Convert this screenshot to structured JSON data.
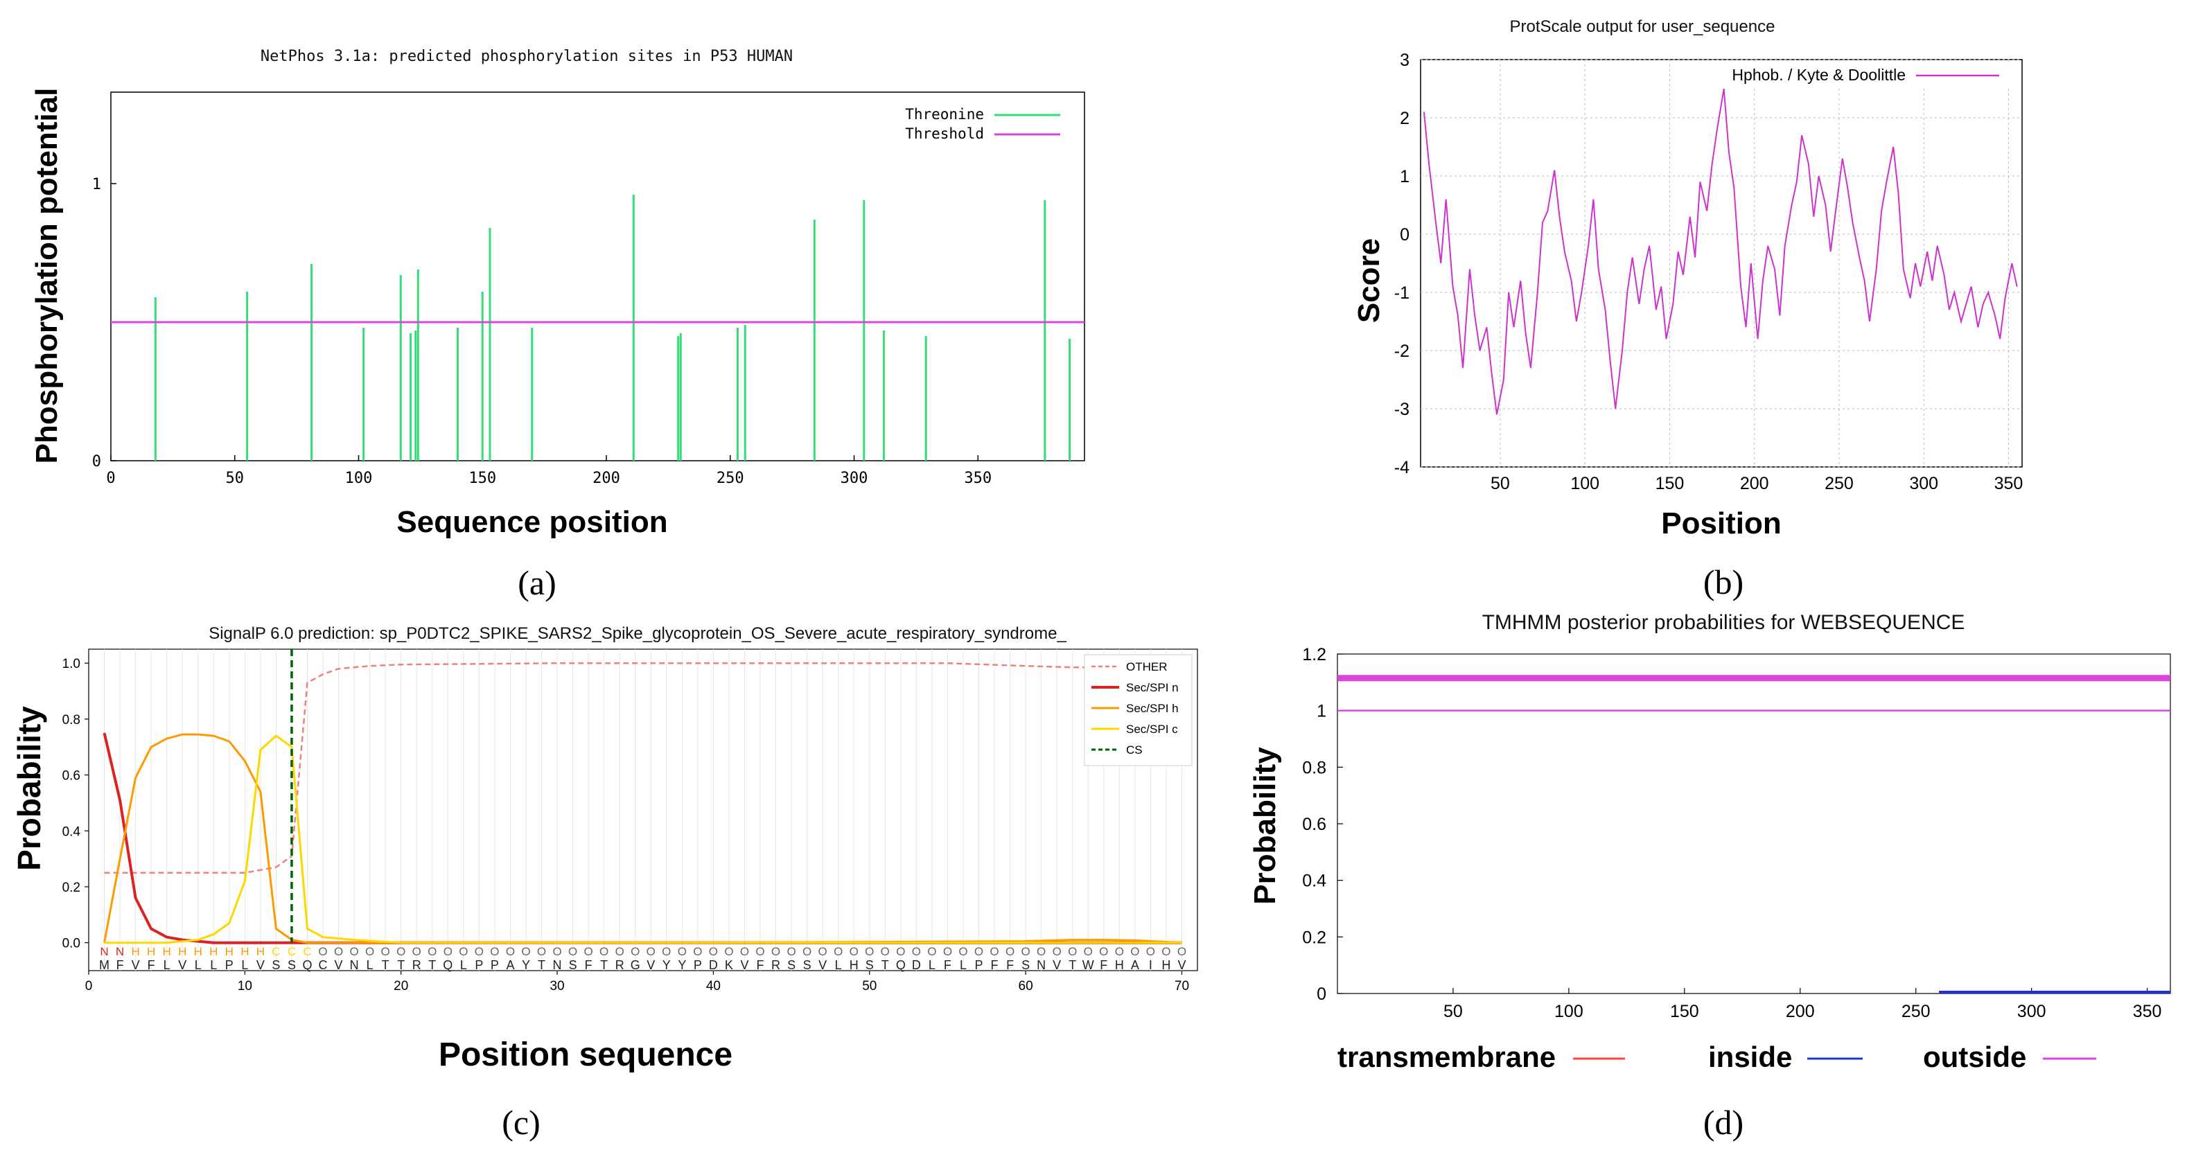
{
  "panels": {
    "a": {
      "label": "(a)"
    },
    "b": {
      "label": "(b)"
    },
    "c": {
      "label": "(c)"
    },
    "d": {
      "label": "(d)"
    }
  },
  "colors": {
    "green": "#33dd77",
    "magenta": "#dd44dd",
    "red": "#dd2222",
    "orange": "#ff9900",
    "yellow": "#ffd700",
    "salmon": "#f08080",
    "cs": "#006400",
    "blue": "#2233cc"
  },
  "chart_data": [
    {
      "id": "a",
      "type": "bar",
      "title": "NetPhos 3.1a: predicted phosphorylation sites in P53 HUMAN",
      "xlabel": "Sequence position",
      "ylabel": "Phosphorylation potential",
      "xlim": [
        0,
        393
      ],
      "ylim": [
        0,
        1.33
      ],
      "xticks": [
        0,
        50,
        100,
        150,
        200,
        250,
        300,
        350
      ],
      "yticks": [
        0,
        1
      ],
      "threshold": 0.5,
      "legend": [
        "Threonine",
        "Threshold"
      ],
      "x": [
        18,
        55,
        81,
        102,
        117,
        121,
        123,
        124,
        140,
        150,
        153,
        170,
        211,
        229,
        230,
        253,
        256,
        284,
        304,
        312,
        329,
        377,
        387
      ],
      "values": [
        0.59,
        0.61,
        0.71,
        0.48,
        0.67,
        0.46,
        0.47,
        0.69,
        0.48,
        0.61,
        0.84,
        0.48,
        0.96,
        0.45,
        0.46,
        0.48,
        0.49,
        0.87,
        0.94,
        0.47,
        0.45,
        0.94,
        0.44
      ]
    },
    {
      "id": "b",
      "type": "line",
      "title": "ProtScale output for user_sequence",
      "xlabel": "Position",
      "ylabel": "Score",
      "xlim": [
        3,
        358
      ],
      "ylim": [
        -4,
        3
      ],
      "xticks": [
        50,
        100,
        150,
        200,
        250,
        300,
        350
      ],
      "yticks": [
        -4,
        -3,
        -2,
        -1,
        0,
        1,
        2,
        3
      ],
      "legend": [
        "Hphob. / Kyte & Doolittle"
      ],
      "x": [
        5,
        8,
        12,
        15,
        18,
        22,
        25,
        28,
        32,
        35,
        38,
        42,
        45,
        48,
        52,
        55,
        58,
        62,
        65,
        68,
        72,
        75,
        78,
        82,
        85,
        88,
        92,
        95,
        98,
        102,
        105,
        108,
        112,
        115,
        118,
        122,
        125,
        128,
        132,
        135,
        138,
        142,
        145,
        148,
        152,
        155,
        158,
        162,
        165,
        168,
        172,
        175,
        178,
        182,
        185,
        188,
        192,
        195,
        198,
        202,
        205,
        208,
        212,
        215,
        218,
        222,
        225,
        228,
        232,
        235,
        238,
        242,
        245,
        248,
        252,
        255,
        258,
        262,
        265,
        268,
        272,
        275,
        278,
        282,
        285,
        288,
        292,
        295,
        298,
        302,
        305,
        308,
        312,
        315,
        318,
        322,
        325,
        328,
        332,
        335,
        338,
        342,
        345,
        348,
        352,
        355
      ],
      "values": [
        2.1,
        1.2,
        0.2,
        -0.5,
        0.6,
        -0.9,
        -1.4,
        -2.3,
        -0.6,
        -1.4,
        -2.0,
        -1.6,
        -2.4,
        -3.1,
        -2.5,
        -1.0,
        -1.6,
        -0.8,
        -1.7,
        -2.3,
        -1.0,
        0.2,
        0.4,
        1.1,
        0.3,
        -0.3,
        -0.8,
        -1.5,
        -1.0,
        -0.2,
        0.6,
        -0.6,
        -1.3,
        -2.2,
        -3.0,
        -2.0,
        -1.0,
        -0.4,
        -1.2,
        -0.6,
        -0.2,
        -1.3,
        -0.9,
        -1.8,
        -1.2,
        -0.3,
        -0.7,
        0.3,
        -0.4,
        0.9,
        0.4,
        1.2,
        1.8,
        2.5,
        1.4,
        0.8,
        -0.9,
        -1.6,
        -0.5,
        -1.8,
        -0.8,
        -0.2,
        -0.6,
        -1.4,
        -0.2,
        0.5,
        0.9,
        1.7,
        1.2,
        0.3,
        1.0,
        0.5,
        -0.3,
        0.4,
        1.3,
        0.8,
        0.2,
        -0.4,
        -0.8,
        -1.5,
        -0.6,
        0.4,
        0.9,
        1.5,
        0.7,
        -0.6,
        -1.1,
        -0.5,
        -0.9,
        -0.3,
        -0.8,
        -0.2,
        -0.7,
        -1.3,
        -1.0,
        -1.5,
        -1.2,
        -0.9,
        -1.6,
        -1.2,
        -1.0,
        -1.4,
        -1.8,
        -1.1,
        -0.5,
        -0.9
      ]
    },
    {
      "id": "c",
      "type": "line",
      "title": "SignalP 6.0 prediction: sp_P0DTC2_SPIKE_SARS2_Spike_glycoprotein_OS_Severe_acute_respiratory_syndrome_",
      "xlabel": "Position sequence",
      "ylabel": "Probability",
      "xlim": [
        0,
        71
      ],
      "ylim": [
        -0.1,
        1.05
      ],
      "xticks": [
        0,
        10,
        20,
        30,
        40,
        50,
        60,
        70
      ],
      "yticks": [
        0.0,
        0.2,
        0.4,
        0.6,
        0.8,
        1.0
      ],
      "ytick_labels": [
        "0.0",
        "0.2",
        "0.4",
        "0.6",
        "0.8",
        "1.0"
      ],
      "cs": 13,
      "region_labels": "NNHHHHHHHHHCCCOOOOOOOOOOOOOOOOOOOOOOOOOOOOOOOOOOOOOOOOOOOOOOOOOOOOOOOOOOO",
      "sequence": "MFVFLVLLPLVSSQCVNLTTRTQLPPAYTNSFTRGVYYPDKVFRSSVLHSTQDLFLPFFSNVTWFHAIHV",
      "series": [
        {
          "name": "OTHER",
          "dashed": true,
          "x": [
            1,
            5,
            10,
            12,
            13,
            14,
            15,
            16,
            18,
            20,
            30,
            40,
            50,
            55,
            60,
            63,
            65,
            67,
            70
          ],
          "values": [
            0.25,
            0.25,
            0.25,
            0.27,
            0.31,
            0.93,
            0.96,
            0.98,
            0.99,
            0.995,
            1.0,
            1.0,
            1.0,
            1.0,
            0.99,
            0.985,
            0.985,
            0.99,
            0.995
          ]
        },
        {
          "name": "Sec/SPI n",
          "x": [
            1,
            2,
            3,
            4,
            5,
            6,
            7,
            8,
            9,
            10,
            20,
            40,
            70
          ],
          "values": [
            0.75,
            0.51,
            0.16,
            0.05,
            0.02,
            0.01,
            0.005,
            0.0,
            0.0,
            0.0,
            0.0,
            0.0,
            0.0
          ]
        },
        {
          "name": "Sec/SPI h",
          "x": [
            1,
            2,
            3,
            4,
            5,
            6,
            7,
            8,
            9,
            10,
            11,
            12,
            13,
            14,
            15,
            20,
            40,
            60,
            63,
            65,
            67,
            70
          ],
          "values": [
            0.0,
            0.3,
            0.59,
            0.7,
            0.73,
            0.745,
            0.745,
            0.74,
            0.72,
            0.65,
            0.54,
            0.05,
            0.01,
            0.0,
            0.0,
            0.0,
            0.0,
            0.005,
            0.01,
            0.01,
            0.008,
            0.0
          ]
        },
        {
          "name": "Sec/SPI c",
          "x": [
            1,
            5,
            7,
            8,
            9,
            10,
            11,
            12,
            13,
            14,
            15,
            17,
            20,
            40,
            70
          ],
          "values": [
            0.0,
            0.0,
            0.01,
            0.03,
            0.07,
            0.22,
            0.69,
            0.74,
            0.7,
            0.05,
            0.02,
            0.01,
            0.0,
            0.0,
            0.0
          ]
        },
        {
          "name": "CS"
        }
      ]
    },
    {
      "id": "d",
      "type": "line",
      "title": "TMHMM posterior probabilities for WEBSEQUENCE",
      "xlabel": "",
      "ylabel": "Probability",
      "xlim": [
        0,
        360
      ],
      "ylim": [
        0,
        1.2
      ],
      "xticks": [
        50,
        100,
        150,
        200,
        250,
        300,
        350
      ],
      "yticks": [
        0,
        0.2,
        0.4,
        0.6,
        0.8,
        1,
        1.2
      ],
      "ytick_labels": [
        "0",
        "0.2",
        "0.4",
        "0.6",
        "0.8",
        "1",
        "1.2"
      ],
      "legend": [
        "transmembrane",
        "inside",
        "outside"
      ],
      "outside_band": 1.115,
      "outside_line": 1.0,
      "inside_line": 0.0
    }
  ]
}
